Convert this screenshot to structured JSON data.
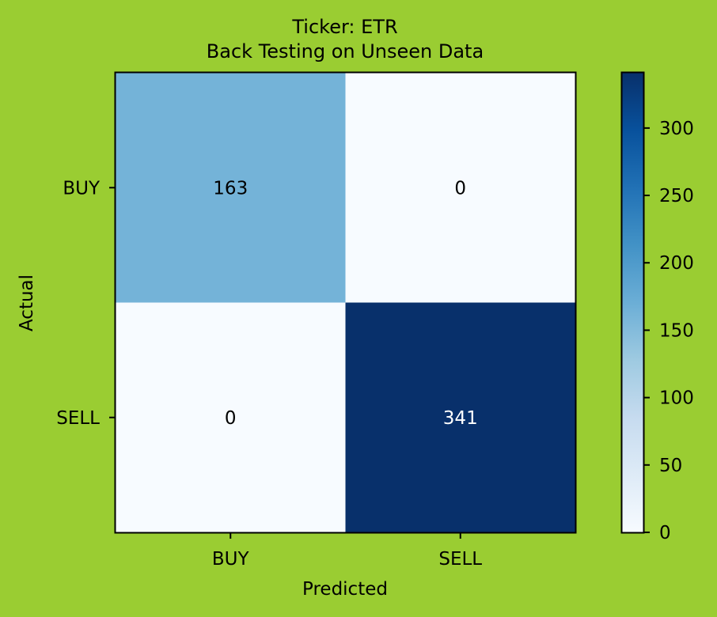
{
  "chart_data": {
    "type": "heatmap",
    "title": "Ticker: ETR",
    "subtitle": "Back Testing on Unseen Data",
    "xlabel": "Predicted",
    "ylabel": "Actual",
    "x_categories": [
      "BUY",
      "SELL"
    ],
    "y_categories": [
      "BUY",
      "SELL"
    ],
    "values": [
      [
        163,
        0
      ],
      [
        0,
        341
      ]
    ],
    "colorbar": {
      "min": 0,
      "max": 341,
      "ticks": [
        "0",
        "50",
        "100",
        "150",
        "200",
        "250",
        "300"
      ],
      "colormap": "Blues"
    },
    "grid": false
  },
  "colors": {
    "background": "#9acd32",
    "cmap_low": "#f7fbff",
    "cmap_high": "#08306b",
    "text_dark": "#000000",
    "text_light": "#ffffff"
  }
}
